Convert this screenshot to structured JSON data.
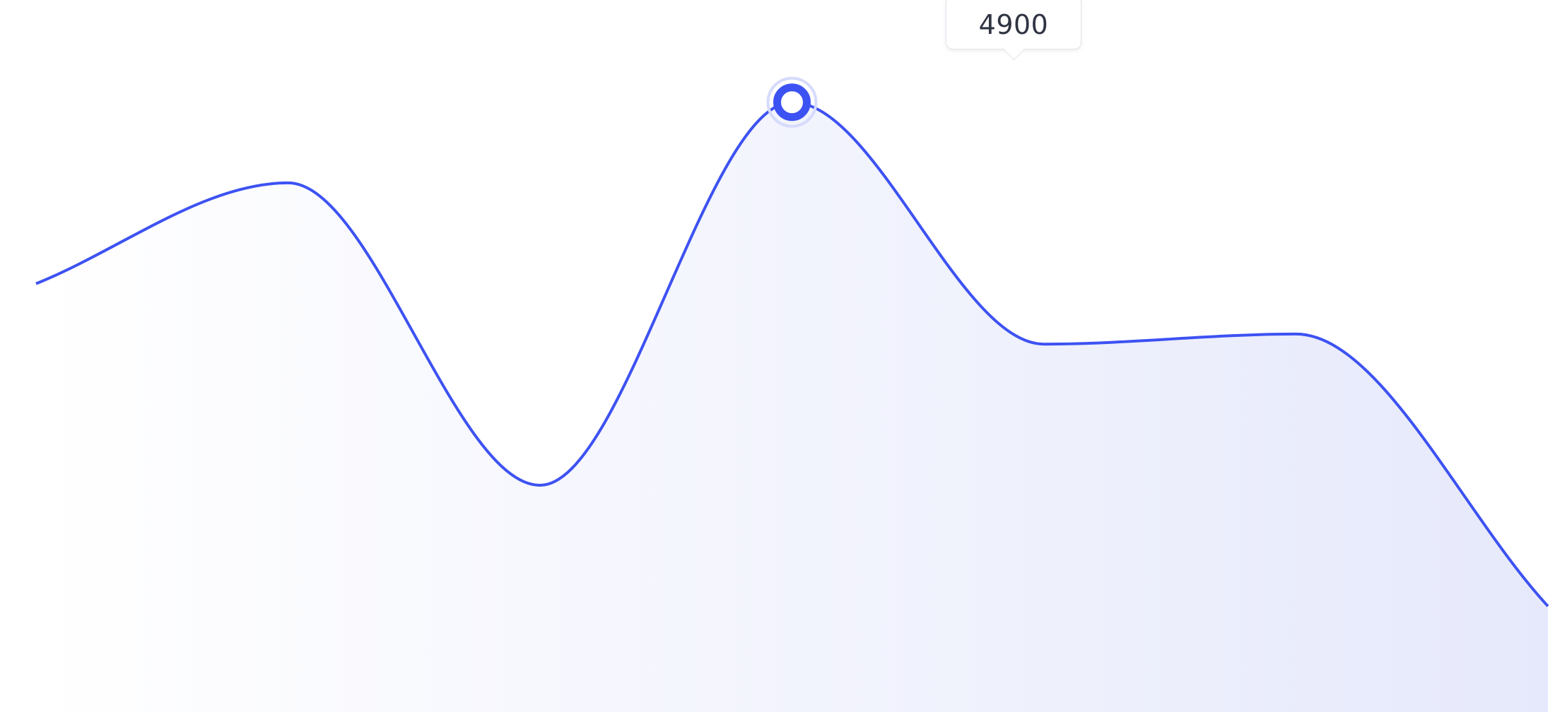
{
  "chart_data": {
    "type": "area",
    "x": [
      1,
      2,
      3,
      4,
      5,
      6,
      7
    ],
    "values": [
      3100,
      4100,
      1100,
      4900,
      2500,
      2600,
      -100
    ],
    "xlim": [
      1,
      7
    ],
    "ylim": [
      -1150,
      5550
    ],
    "grid": false,
    "legend": "none",
    "curve": "smooth",
    "highlight": {
      "x": 4,
      "value": 4900
    },
    "tooltip": {
      "label": "4900"
    },
    "colors": {
      "line": "#3d52f2",
      "area_start": "#ffffff",
      "area_end": "#e6e9fb",
      "marker_fill": "#ffffff",
      "marker_halo": "#d6dbfc"
    }
  }
}
